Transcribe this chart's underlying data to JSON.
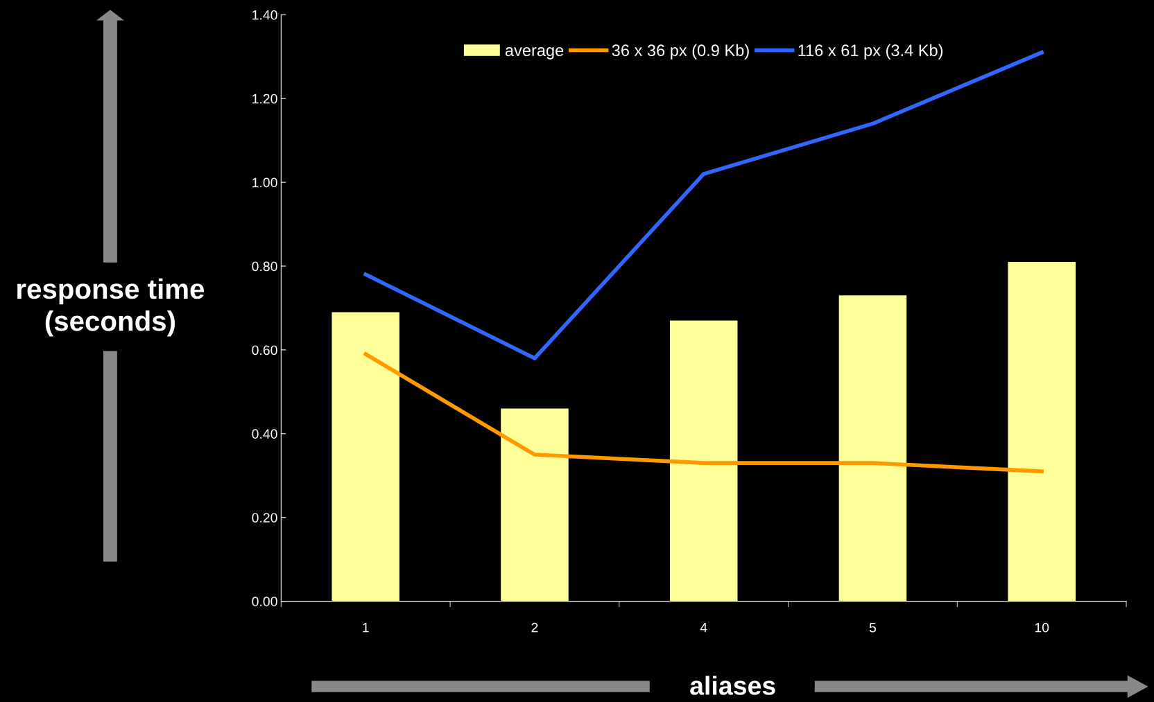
{
  "chart_data": {
    "type": "bar",
    "categories": [
      "1",
      "2",
      "4",
      "5",
      "10"
    ],
    "series": [
      {
        "name": "average",
        "color": "#ffff99",
        "values": [
          0.69,
          0.46,
          0.67,
          0.73,
          0.81
        ]
      },
      {
        "name": "36 x 36 px (0.9 Kb)",
        "type": "line",
        "color": "#ff9900",
        "values": [
          0.59,
          0.35,
          0.33,
          0.33,
          0.31
        ]
      },
      {
        "name": "116 x 61 px (3.4 Kb)",
        "type": "line",
        "color": "#3366ff",
        "values": [
          0.78,
          0.58,
          1.02,
          1.14,
          1.31
        ]
      }
    ],
    "ylabel": "response time\n(seconds)",
    "xlabel": "aliases",
    "ylim": [
      0,
      1.4
    ],
    "yticks": [
      {
        "value": 0,
        "label": "0.00"
      },
      {
        "value": 0.2,
        "label": "0.20"
      },
      {
        "value": 0.4,
        "label": "0.40"
      },
      {
        "value": 0.6,
        "label": "0.60"
      },
      {
        "value": 0.8,
        "label": "0.80"
      },
      {
        "value": 1.0,
        "label": "1.00"
      },
      {
        "value": 1.2,
        "label": "1.20"
      },
      {
        "value": 1.4,
        "label": "1.40"
      }
    ],
    "grid": false,
    "legend": "top",
    "marker": "none",
    "line_style": "solid"
  }
}
